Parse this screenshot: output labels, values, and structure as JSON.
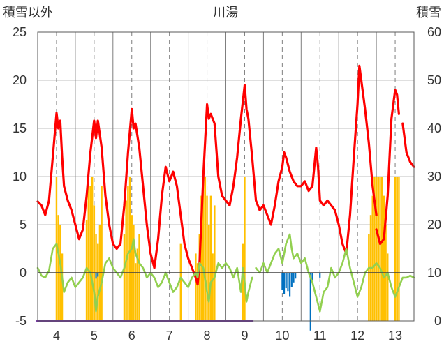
{
  "chart_data": {
    "type": "bar",
    "title": "川湯",
    "left_axis_label": "積雪以外",
    "right_axis_label": "積雪",
    "left_ylim": [
      -5,
      25
    ],
    "left_ticks": [
      "-5",
      "0",
      "5",
      "10",
      "15",
      "20",
      "25"
    ],
    "right_ylim": [
      0,
      60
    ],
    "right_ticks": [
      "0",
      "10",
      "20",
      "30",
      "40",
      "50",
      "60"
    ],
    "x_range": [
      3.5,
      13.5
    ],
    "x_ticks": [
      "4",
      "5",
      "6",
      "7",
      "8",
      "9",
      "10",
      "11",
      "12",
      "13"
    ],
    "grid": true,
    "colors": {
      "red_line": "#ff0000",
      "green_line": "#92d050",
      "yellow_bars": "#ffc000",
      "blue_bars": "#0070c0",
      "purple_line": "#7030a0",
      "grid": "#7f7f7f",
      "axis": "#595959"
    },
    "series": [
      {
        "color": "red_line",
        "kind": "line",
        "axis": "left",
        "points": [
          [
            3.5,
            7.4
          ],
          [
            3.6,
            7.0
          ],
          [
            3.7,
            6.0
          ],
          [
            3.8,
            7.5
          ],
          [
            3.9,
            12.0
          ],
          [
            4.0,
            16.6
          ],
          [
            4.05,
            15.0
          ],
          [
            4.1,
            15.8
          ],
          [
            4.15,
            12.0
          ],
          [
            4.2,
            9.0
          ],
          [
            4.3,
            7.5
          ],
          [
            4.4,
            6.5
          ],
          [
            4.5,
            5.0
          ],
          [
            4.6,
            3.5
          ],
          [
            4.7,
            4.5
          ],
          [
            4.8,
            8.0
          ],
          [
            4.9,
            12.5
          ],
          [
            5.0,
            15.8
          ],
          [
            5.05,
            14.0
          ],
          [
            5.1,
            15.8
          ],
          [
            5.2,
            13.0
          ],
          [
            5.3,
            8.0
          ],
          [
            5.4,
            5.0
          ],
          [
            5.5,
            3.0
          ],
          [
            5.6,
            2.5
          ],
          [
            5.7,
            3.0
          ],
          [
            5.8,
            7.0
          ],
          [
            5.9,
            12.5
          ],
          [
            6.0,
            17.0
          ],
          [
            6.05,
            15.0
          ],
          [
            6.1,
            15.5
          ],
          [
            6.2,
            13.0
          ],
          [
            6.3,
            9.0
          ],
          [
            6.4,
            5.0
          ],
          [
            6.5,
            2.0
          ],
          [
            6.6,
            0.5
          ],
          [
            6.7,
            3.5
          ],
          [
            6.8,
            8.0
          ],
          [
            6.9,
            11.0
          ],
          [
            7.0,
            9.5
          ],
          [
            7.1,
            10.5
          ],
          [
            7.2,
            9.0
          ],
          [
            7.3,
            6.0
          ],
          [
            7.4,
            3.0
          ],
          [
            7.5,
            1.5
          ],
          [
            7.6,
            0.5
          ],
          [
            7.7,
            -0.5
          ],
          [
            7.75,
            -1.2
          ],
          [
            7.8,
            1.0
          ],
          [
            7.9,
            10.0
          ],
          [
            8.0,
            17.5
          ],
          [
            8.05,
            16.0
          ],
          [
            8.1,
            16.5
          ],
          [
            8.2,
            15.5
          ],
          [
            8.3,
            10.0
          ],
          [
            8.4,
            8.0
          ],
          [
            8.5,
            7.5
          ],
          [
            8.6,
            7.0
          ],
          [
            8.7,
            9.0
          ],
          [
            8.8,
            12.0
          ],
          [
            8.9,
            16.0
          ],
          [
            9.0,
            19.5
          ],
          [
            9.05,
            17.0
          ],
          [
            9.1,
            16.0
          ],
          [
            9.2,
            12.0
          ],
          [
            9.3,
            7.5
          ],
          [
            9.4,
            6.5
          ],
          [
            9.5,
            7.0
          ],
          [
            9.6,
            6.0
          ],
          [
            9.7,
            5.0
          ],
          [
            9.8,
            7.0
          ],
          [
            9.9,
            9.5
          ],
          [
            10.0,
            11.0
          ],
          [
            10.05,
            12.5
          ],
          [
            10.1,
            12.0
          ],
          [
            10.2,
            10.5
          ],
          [
            10.3,
            9.5
          ],
          [
            10.4,
            9.0
          ],
          [
            10.5,
            9.0
          ],
          [
            10.6,
            9.5
          ],
          [
            10.7,
            8.5
          ],
          [
            10.8,
            9.0
          ],
          [
            10.9,
            13.0
          ],
          [
            10.95,
            11.0
          ],
          [
            11.0,
            7.5
          ],
          [
            11.1,
            7.0
          ],
          [
            11.2,
            7.5
          ],
          [
            11.3,
            7.0
          ],
          [
            11.4,
            6.5
          ],
          [
            11.5,
            5.0
          ],
          [
            11.6,
            3.0
          ],
          [
            11.7,
            2.0
          ],
          [
            11.8,
            6.0
          ],
          [
            11.9,
            12.0
          ],
          [
            12.0,
            17.5
          ],
          [
            12.05,
            21.5
          ],
          [
            12.1,
            20.0
          ],
          [
            12.2,
            17.0
          ],
          [
            12.3,
            13.5
          ],
          [
            12.4,
            9.0
          ],
          [
            12.5,
            6.0
          ]
        ],
        "points_b": [
          [
            12.5,
            4.5
          ],
          [
            12.6,
            3.0
          ],
          [
            12.7,
            3.5
          ],
          [
            12.8,
            8.0
          ],
          [
            12.9,
            16.0
          ],
          [
            13.0,
            19.0
          ],
          [
            13.05,
            18.5
          ],
          [
            13.1,
            16.5
          ]
        ],
        "points_c": [
          [
            13.2,
            15.5
          ],
          [
            13.3,
            12.5
          ],
          [
            13.4,
            11.5
          ],
          [
            13.5,
            11.0
          ]
        ]
      },
      {
        "color": "green_line",
        "kind": "line",
        "axis": "left",
        "points": [
          [
            3.5,
            0.5
          ],
          [
            3.6,
            -0.3
          ],
          [
            3.7,
            -0.5
          ],
          [
            3.8,
            0.2
          ],
          [
            3.9,
            2.5
          ],
          [
            4.0,
            3.0
          ],
          [
            4.05,
            2.0
          ],
          [
            4.1,
            1.0
          ],
          [
            4.2,
            -2.0
          ],
          [
            4.3,
            -1.0
          ],
          [
            4.4,
            -0.5
          ],
          [
            4.5,
            -1.5
          ],
          [
            4.6,
            -1.0
          ],
          [
            4.7,
            -0.5
          ],
          [
            4.8,
            0.5
          ],
          [
            4.9,
            0.0
          ],
          [
            5.0,
            -2.0
          ],
          [
            5.05,
            -4.0
          ],
          [
            5.1,
            -2.5
          ],
          [
            5.2,
            -1.0
          ],
          [
            5.3,
            1.0
          ],
          [
            5.4,
            1.5
          ],
          [
            5.5,
            0.5
          ],
          [
            5.6,
            0.0
          ],
          [
            5.7,
            -0.5
          ],
          [
            5.8,
            0.5
          ],
          [
            5.9,
            2.0
          ],
          [
            6.0,
            2.5
          ],
          [
            6.05,
            3.5
          ],
          [
            6.1,
            2.0
          ],
          [
            6.2,
            1.0
          ],
          [
            6.3,
            0.5
          ],
          [
            6.4,
            -0.5
          ],
          [
            6.5,
            0.0
          ],
          [
            6.6,
            -0.5
          ],
          [
            6.7,
            -1.5
          ],
          [
            6.8,
            -1.0
          ],
          [
            6.9,
            0.0
          ],
          [
            7.0,
            -1.0
          ],
          [
            7.1,
            -2.0
          ],
          [
            7.2,
            -1.5
          ],
          [
            7.3,
            -0.5
          ],
          [
            7.4,
            -1.0
          ],
          [
            7.5,
            -1.5
          ],
          [
            7.6,
            -0.5
          ],
          [
            7.7,
            0.0
          ],
          [
            7.75,
            -0.5
          ],
          [
            7.8,
            1.0
          ],
          [
            7.9,
            0.5
          ],
          [
            8.0,
            -2.0
          ],
          [
            8.05,
            -3.0
          ],
          [
            8.1,
            -1.0
          ],
          [
            8.2,
            -0.5
          ],
          [
            8.3,
            1.0
          ],
          [
            8.4,
            0.5
          ],
          [
            8.5,
            1.0
          ],
          [
            8.6,
            0.5
          ],
          [
            8.7,
            -0.5
          ],
          [
            8.8,
            0.5
          ],
          [
            8.9,
            -2.0
          ],
          [
            8.95,
            0.5
          ],
          [
            9.0,
            -1.0
          ],
          [
            9.05,
            -3.0
          ],
          [
            9.1,
            -2.0
          ],
          [
            9.2,
            -0.5
          ]
        ],
        "points_b": [
          [
            9.3,
            0.5
          ],
          [
            9.4,
            0.0
          ],
          [
            9.5,
            1.0
          ],
          [
            9.6,
            0.0
          ],
          [
            9.7,
            1.0
          ],
          [
            9.8,
            2.0
          ],
          [
            9.9,
            2.5
          ],
          [
            10.0,
            1.0
          ],
          [
            10.1,
            3.0
          ],
          [
            10.2,
            4.0
          ],
          [
            10.25,
            2.5
          ],
          [
            10.3,
            1.5
          ],
          [
            10.4,
            2.0
          ],
          [
            10.5,
            1.0
          ],
          [
            10.6,
            1.5
          ],
          [
            10.7,
            0.0
          ],
          [
            10.8,
            -1.0
          ],
          [
            10.9,
            -2.5
          ],
          [
            11.0,
            -4.0
          ],
          [
            11.1,
            -2.0
          ],
          [
            11.2,
            -1.5
          ],
          [
            11.3,
            0.5
          ],
          [
            11.4,
            -0.5
          ],
          [
            11.5,
            0.0
          ],
          [
            11.6,
            1.0
          ],
          [
            11.7,
            2.5
          ],
          [
            11.8,
            0.5
          ],
          [
            11.9,
            -1.0
          ],
          [
            12.0,
            -2.5
          ],
          [
            12.1,
            -1.5
          ],
          [
            12.2,
            0.0
          ],
          [
            12.3,
            0.5
          ],
          [
            12.4,
            0.5
          ],
          [
            12.5,
            1.0
          ],
          [
            12.6,
            0.5
          ],
          [
            12.7,
            -0.5
          ],
          [
            12.8,
            0.0
          ],
          [
            12.9,
            -1.5
          ],
          [
            13.0,
            -2.5
          ],
          [
            13.1,
            -1.5
          ],
          [
            13.2,
            -0.5
          ],
          [
            13.3,
            -0.5
          ],
          [
            13.4,
            -0.3
          ],
          [
            13.5,
            -0.5
          ]
        ]
      },
      {
        "color": "yellow_bars",
        "kind": "bar",
        "axis": "right",
        "bar_width": 0.045,
        "points": [
          [
            4.0,
            30
          ],
          [
            4.05,
            22
          ],
          [
            4.1,
            20
          ],
          [
            4.15,
            14
          ],
          [
            4.8,
            21
          ],
          [
            4.85,
            30
          ],
          [
            4.9,
            28
          ],
          [
            4.95,
            30
          ],
          [
            5.0,
            24
          ],
          [
            5.05,
            18
          ],
          [
            5.1,
            16
          ],
          [
            5.15,
            20
          ],
          [
            5.2,
            28
          ],
          [
            5.8,
            18
          ],
          [
            5.85,
            25
          ],
          [
            5.9,
            28
          ],
          [
            5.95,
            30
          ],
          [
            6.0,
            22
          ],
          [
            6.05,
            20
          ],
          [
            6.1,
            12
          ],
          [
            6.15,
            15
          ],
          [
            6.2,
            18
          ],
          [
            7.3,
            16
          ],
          [
            7.7,
            14
          ],
          [
            7.75,
            12
          ],
          [
            7.8,
            18
          ],
          [
            7.85,
            26
          ],
          [
            7.9,
            30
          ],
          [
            7.95,
            30
          ],
          [
            8.0,
            26
          ],
          [
            8.05,
            20
          ],
          [
            8.1,
            26
          ],
          [
            8.15,
            14
          ],
          [
            8.2,
            24
          ],
          [
            8.95,
            16
          ],
          [
            9.0,
            30
          ],
          [
            12.3,
            18
          ],
          [
            12.35,
            22
          ],
          [
            12.4,
            26
          ],
          [
            12.45,
            30
          ],
          [
            12.5,
            30
          ],
          [
            12.55,
            30
          ],
          [
            12.6,
            30
          ],
          [
            12.65,
            30
          ],
          [
            12.7,
            26
          ],
          [
            12.75,
            20
          ],
          [
            12.8,
            14
          ],
          [
            13.0,
            30
          ],
          [
            13.05,
            30
          ],
          [
            13.1,
            30
          ]
        ]
      },
      {
        "color": "blue_bars",
        "kind": "bar",
        "axis": "left",
        "bar_width": 0.04,
        "points": [
          [
            5.05,
            -0.6
          ],
          [
            5.1,
            -0.4
          ],
          [
            10.0,
            -1.8
          ],
          [
            10.05,
            -2.2
          ],
          [
            10.1,
            -1.6
          ],
          [
            10.15,
            -1.9
          ],
          [
            10.2,
            -2.5
          ],
          [
            10.25,
            -1.5
          ],
          [
            10.3,
            -1.0
          ],
          [
            10.35,
            -0.6
          ],
          [
            10.75,
            -6.0
          ],
          [
            10.8,
            -0.8
          ],
          [
            11.0,
            -0.5
          ]
        ]
      },
      {
        "color": "purple_line",
        "kind": "line",
        "axis": "left",
        "points": [
          [
            3.5,
            -5.0
          ],
          [
            9.2,
            -5.0
          ]
        ]
      }
    ]
  }
}
